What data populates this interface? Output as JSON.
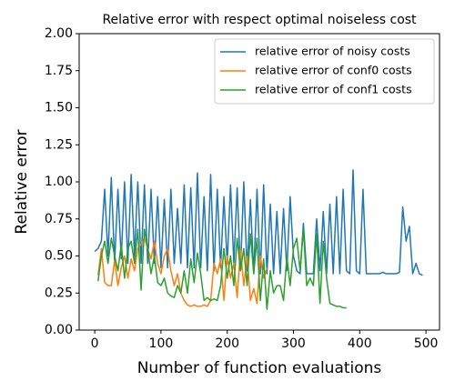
{
  "chart_data": {
    "type": "line",
    "title": "Relative error with respect optimal noiseless cost",
    "xlabel": "Number of function evaluations",
    "ylabel": "Relative error",
    "xlim": [
      -23.5,
      520.5
    ],
    "ylim": [
      0,
      2
    ],
    "xticks": [
      0,
      100,
      200,
      300,
      400,
      500
    ],
    "yticks": [
      {
        "value": 0,
        "label": "0.00"
      },
      {
        "value": 0.25,
        "label": "0.25"
      },
      {
        "value": 0.5,
        "label": "0.50"
      },
      {
        "value": 0.75,
        "label": "0.75"
      },
      {
        "value": 1,
        "label": "1.00"
      },
      {
        "value": 1.25,
        "label": "1.25"
      },
      {
        "value": 1.5,
        "label": "1.50"
      },
      {
        "value": 1.75,
        "label": "1.75"
      },
      {
        "value": 2,
        "label": "2.00"
      }
    ],
    "legend": "upper right",
    "series": [
      {
        "name": "relative error of noisy costs",
        "color": "#1f77b4",
        "x": [
          0,
          5,
          10,
          15,
          20,
          25,
          30,
          35,
          40,
          45,
          50,
          55,
          60,
          65,
          70,
          75,
          80,
          85,
          90,
          95,
          100,
          105,
          110,
          115,
          120,
          125,
          130,
          135,
          140,
          145,
          150,
          155,
          160,
          165,
          170,
          175,
          180,
          185,
          190,
          195,
          200,
          205,
          210,
          215,
          220,
          225,
          230,
          235,
          240,
          245,
          250,
          255,
          260,
          265,
          270,
          275,
          280,
          285,
          290,
          295,
          300,
          305,
          310,
          315,
          320,
          325,
          330,
          335,
          340,
          345,
          350,
          355,
          360,
          365,
          370,
          375,
          380,
          385,
          390,
          395,
          400,
          405,
          410,
          415,
          420,
          425,
          430,
          435,
          440,
          445,
          450,
          455,
          460,
          465,
          470,
          475,
          480,
          485,
          490,
          495
        ],
        "values": [
          0.53,
          0.55,
          0.6,
          0.95,
          0.5,
          1.03,
          0.45,
          0.95,
          0.48,
          1.0,
          0.45,
          1.05,
          0.5,
          1.0,
          0.45,
          0.98,
          0.45,
          0.95,
          0.45,
          0.9,
          0.42,
          0.88,
          0.42,
          0.95,
          0.45,
          0.82,
          0.45,
          0.98,
          0.42,
          0.96,
          0.42,
          1.06,
          0.42,
          0.9,
          0.4,
          1.05,
          0.4,
          0.95,
          0.42,
          0.9,
          0.45,
          0.98,
          0.45,
          0.96,
          0.4,
          1.0,
          0.4,
          0.88,
          0.38,
          0.95,
          0.38,
          0.98,
          0.38,
          0.85,
          0.38,
          0.8,
          0.38,
          0.82,
          0.4,
          0.9,
          0.5,
          0.4,
          0.38,
          0.72,
          0.38,
          0.38,
          0.38,
          0.75,
          0.4,
          0.8,
          0.38,
          0.85,
          0.38,
          0.9,
          0.38,
          0.95,
          0.4,
          0.38,
          1.08,
          0.4,
          0.38,
          0.95,
          0.38,
          0.38,
          0.38,
          0.38,
          0.38,
          0.39,
          0.38,
          0.38,
          0.38,
          0.38,
          0.39,
          0.83,
          0.6,
          0.7,
          0.38,
          0.45,
          0.38,
          0.37
        ]
      },
      {
        "name": "relative error of conf0 costs",
        "color": "#ff7f0e",
        "x": [
          5,
          10,
          15,
          20,
          25,
          30,
          35,
          40,
          45,
          50,
          55,
          60,
          65,
          70,
          75,
          80,
          85,
          90,
          95,
          100,
          105,
          110,
          115,
          120,
          125,
          130,
          135,
          140,
          145,
          150,
          155,
          160,
          165,
          170,
          175,
          180,
          185,
          190,
          195,
          200,
          205,
          210,
          215,
          220,
          225,
          230,
          235,
          240,
          245,
          250,
          255,
          260
        ],
        "values": [
          0.37,
          0.55,
          0.32,
          0.3,
          0.3,
          0.47,
          0.3,
          0.42,
          0.5,
          0.35,
          0.48,
          0.4,
          0.55,
          0.58,
          0.62,
          0.55,
          0.48,
          0.6,
          0.45,
          0.38,
          0.5,
          0.55,
          0.4,
          0.3,
          0.38,
          0.25,
          0.2,
          0.17,
          0.16,
          0.17,
          0.16,
          0.16,
          0.17,
          0.16,
          0.2,
          0.45,
          0.38,
          0.48,
          0.2,
          0.5,
          0.35,
          0.45,
          0.22,
          0.55,
          0.3,
          0.5,
          0.2,
          0.28,
          0.18,
          0.5,
          0.35,
          0.42
        ]
      },
      {
        "name": "relative error of conf1 costs",
        "color": "#2ca02c",
        "x": [
          5,
          10,
          15,
          20,
          25,
          30,
          35,
          40,
          45,
          50,
          55,
          60,
          65,
          70,
          75,
          80,
          85,
          90,
          95,
          100,
          105,
          110,
          115,
          120,
          125,
          130,
          135,
          140,
          145,
          150,
          155,
          160,
          165,
          170,
          175,
          180,
          185,
          190,
          195,
          200,
          205,
          210,
          215,
          220,
          225,
          230,
          235,
          240,
          245,
          250,
          255,
          260,
          265,
          270,
          275,
          280,
          285,
          290,
          295,
          300,
          305,
          310,
          315,
          320,
          325,
          330,
          335,
          340,
          345,
          350,
          355,
          360,
          365,
          370,
          375,
          380
        ],
        "values": [
          0.33,
          0.5,
          0.6,
          0.45,
          0.62,
          0.5,
          0.4,
          0.58,
          0.35,
          0.55,
          0.6,
          0.45,
          0.68,
          0.27,
          0.68,
          0.55,
          0.38,
          0.5,
          0.32,
          0.3,
          0.35,
          0.25,
          0.23,
          0.22,
          0.3,
          0.25,
          0.4,
          0.25,
          0.48,
          0.32,
          0.52,
          0.38,
          0.2,
          0.22,
          0.2,
          0.21,
          0.2,
          0.3,
          0.55,
          0.35,
          0.5,
          0.3,
          0.62,
          0.4,
          0.55,
          0.3,
          0.65,
          0.38,
          0.62,
          0.2,
          0.48,
          0.14,
          0.4,
          0.25,
          0.3,
          0.3,
          0.2,
          0.5,
          0.3,
          0.55,
          0.62,
          0.4,
          0.68,
          0.3,
          0.35,
          0.3,
          0.65,
          0.18,
          0.6,
          0.35,
          0.18,
          0.17,
          0.16,
          0.16,
          0.15,
          0.15
        ]
      }
    ]
  }
}
